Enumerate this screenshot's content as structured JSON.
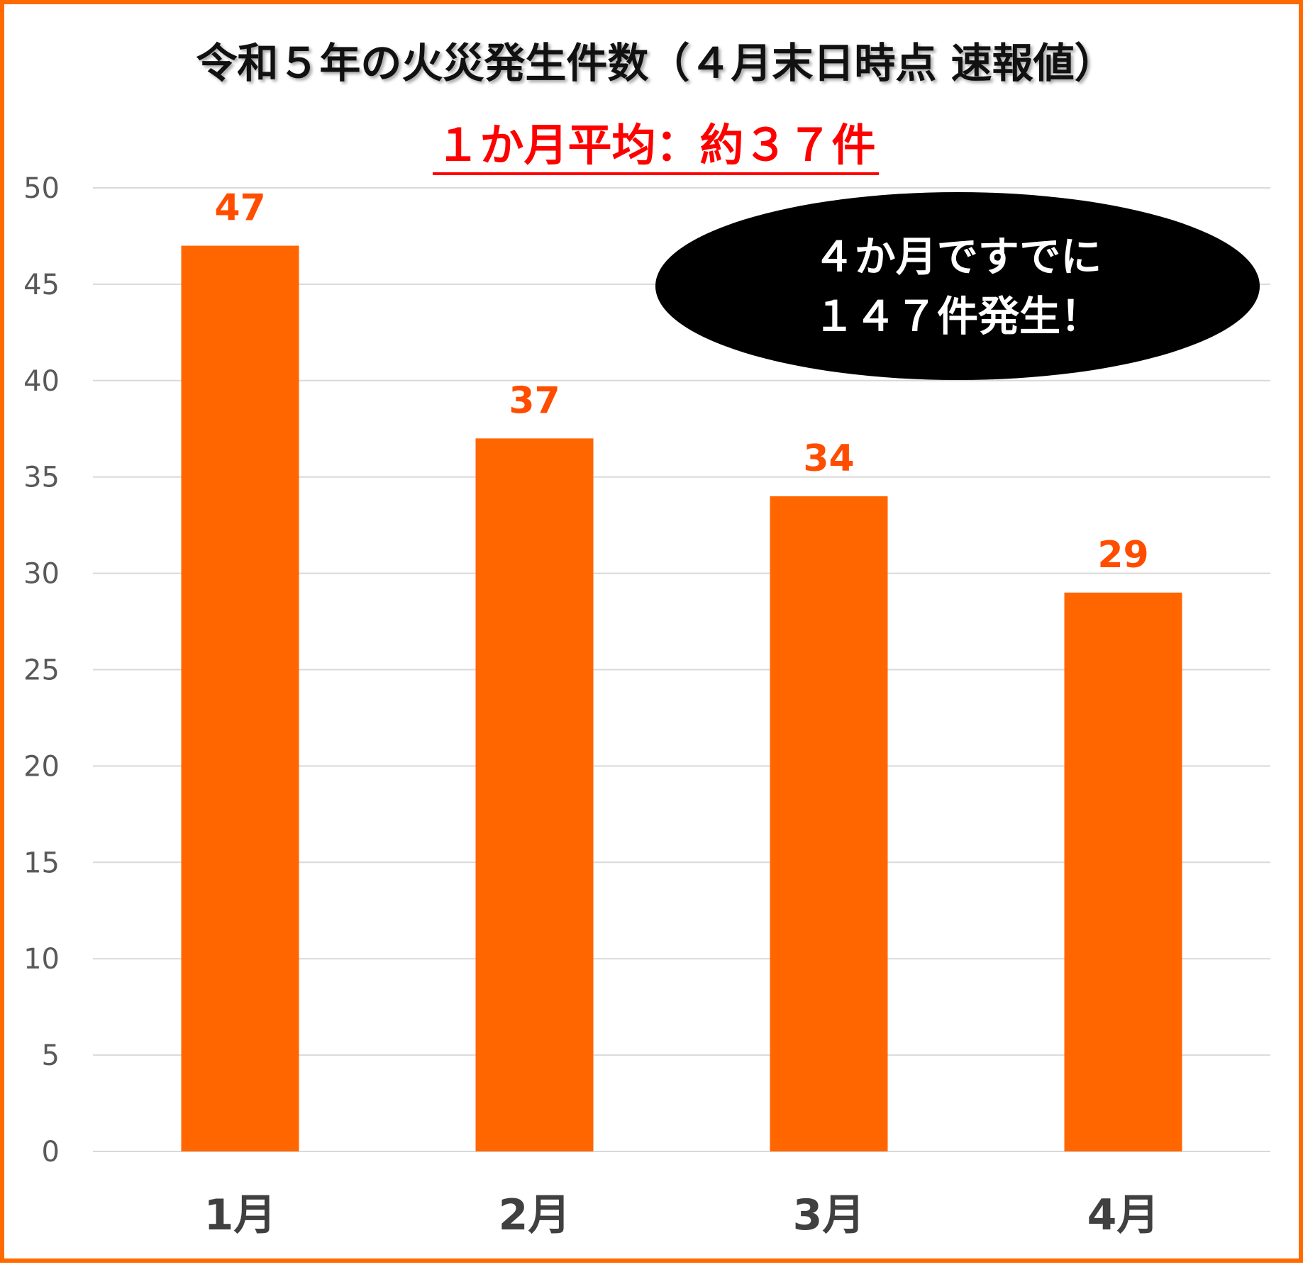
{
  "chart_data": {
    "type": "bar",
    "title": "令和５年の火災発生件数（４月末日時点 速報値）",
    "subtitle": "１か月平均：約３７件",
    "categories": [
      "1月",
      "2月",
      "3月",
      "4月"
    ],
    "values": [
      47,
      37,
      34,
      29
    ],
    "data_labels": [
      "47",
      "37",
      "34",
      "29"
    ],
    "y_ticks": [
      "0",
      "5",
      "10",
      "15",
      "20",
      "25",
      "30",
      "35",
      "40",
      "45",
      "50"
    ],
    "ylim": [
      0,
      50
    ],
    "grid": true,
    "xlabel": "",
    "ylabel": "",
    "annotation": {
      "lines": [
        "４か月ですでに",
        "１４７件発生！"
      ]
    }
  },
  "colors": {
    "bar": "#ff6600",
    "data_label": "#ff4d00",
    "subtitle": "#ff0000",
    "border": "#ff6a00",
    "grid": "#d9d9d9",
    "tick_label": "#595959",
    "category_label": "#404040",
    "callout_bg": "#000000",
    "callout_text": "#ffffff"
  }
}
